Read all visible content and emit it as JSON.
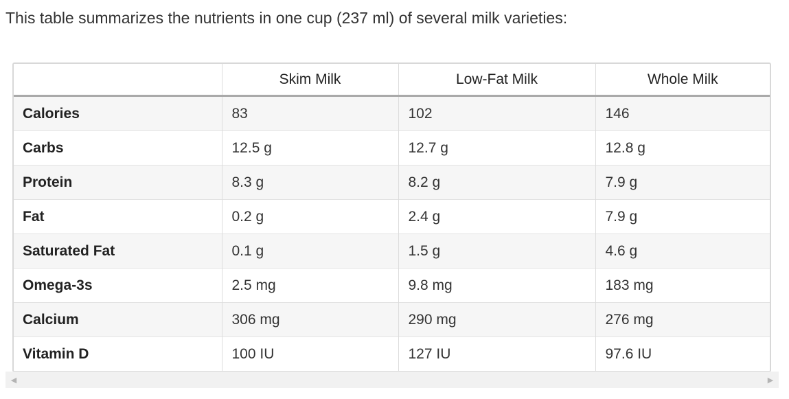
{
  "intro_text": "This table summarizes the nutrients in one cup (237 ml) of several milk varieties:",
  "table": {
    "headers": [
      "",
      "Skim Milk",
      "Low-Fat Milk",
      "Whole Milk"
    ],
    "rows": [
      {
        "nutrient": "Calories",
        "skim": "83",
        "lowfat": "102",
        "whole": "146"
      },
      {
        "nutrient": "Carbs",
        "skim": "12.5 g",
        "lowfat": "12.7 g",
        "whole": "12.8 g"
      },
      {
        "nutrient": "Protein",
        "skim": "8.3 g",
        "lowfat": "8.2 g",
        "whole": "7.9 g"
      },
      {
        "nutrient": "Fat",
        "skim": "0.2 g",
        "lowfat": "2.4 g",
        "whole": "7.9 g"
      },
      {
        "nutrient": "Saturated Fat",
        "skim": "0.1 g",
        "lowfat": "1.5 g",
        "whole": "4.6 g"
      },
      {
        "nutrient": "Omega-3s",
        "skim": "2.5 mg",
        "lowfat": "9.8 mg",
        "whole": "183 mg"
      },
      {
        "nutrient": "Calcium",
        "skim": "306 mg",
        "lowfat": "290 mg",
        "whole": "276 mg"
      },
      {
        "nutrient": "Vitamin D",
        "skim": "100 IU",
        "lowfat": "127 IU",
        "whole": "97.6 IU"
      }
    ]
  },
  "scrollbar": {
    "left_icon": "triangle-left-icon",
    "right_icon": "triangle-right-icon"
  }
}
